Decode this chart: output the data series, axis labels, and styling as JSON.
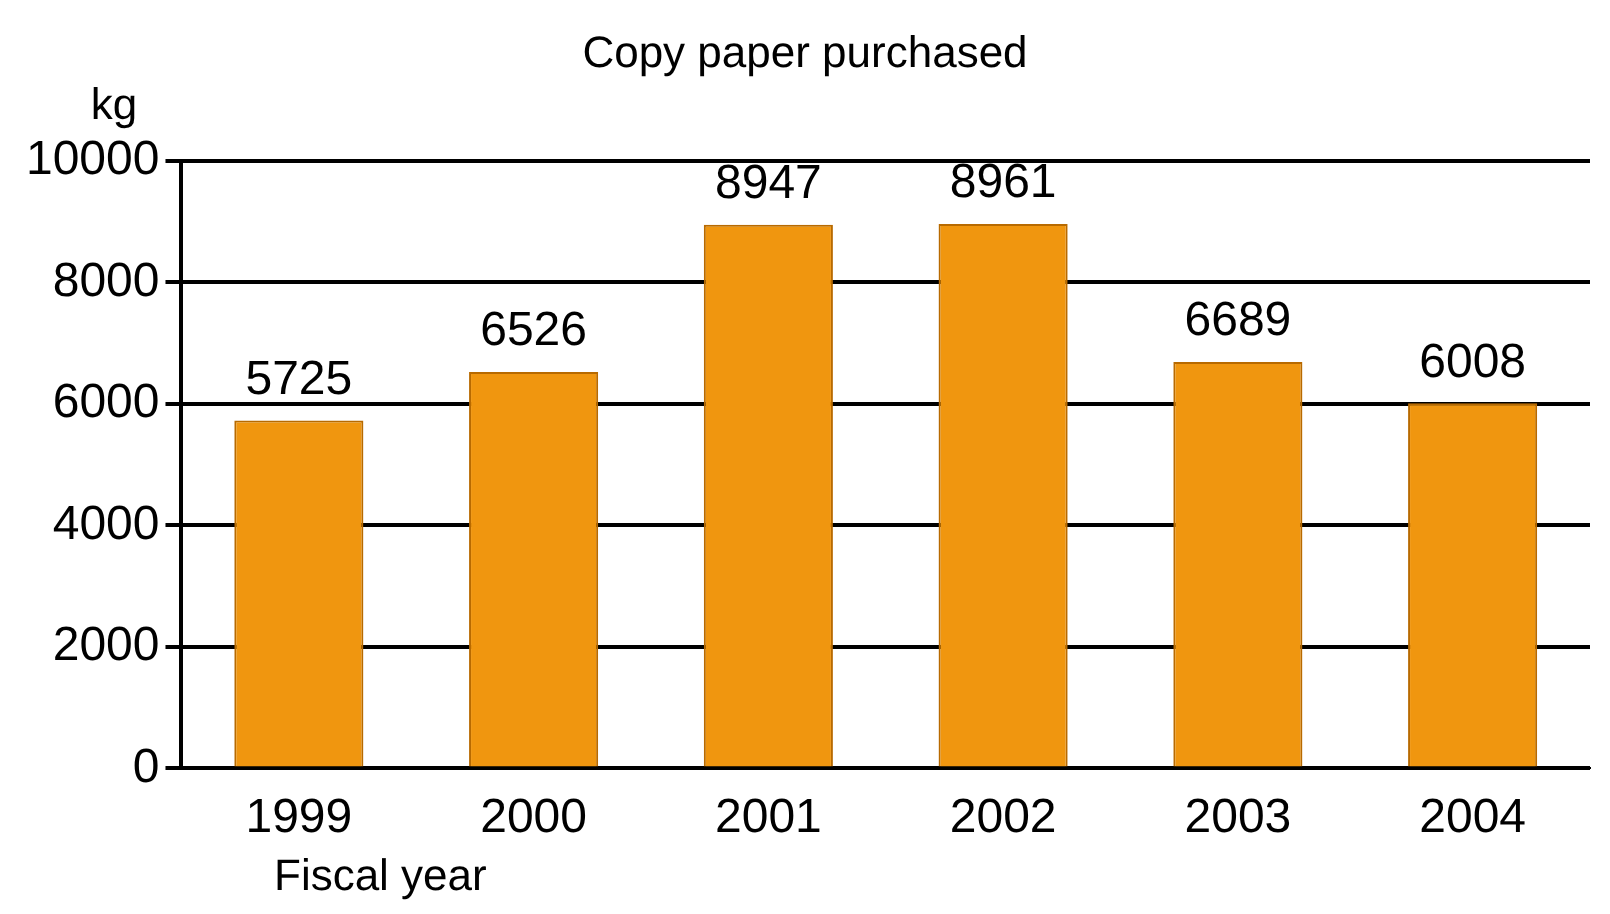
{
  "chart_data": {
    "type": "bar",
    "title": "Copy paper purchased",
    "ylabel": "kg",
    "xlabel": "Fiscal year",
    "categories": [
      "1999",
      "2000",
      "2001",
      "2002",
      "2003",
      "2004"
    ],
    "values": [
      5725,
      6526,
      8947,
      8961,
      6689,
      6008
    ],
    "color": "#f0960f",
    "ylim": [
      0,
      10000
    ],
    "yticks": [
      0,
      2000,
      4000,
      6000,
      8000,
      10000
    ],
    "grid": "y",
    "data_labels": true,
    "legend": false
  }
}
